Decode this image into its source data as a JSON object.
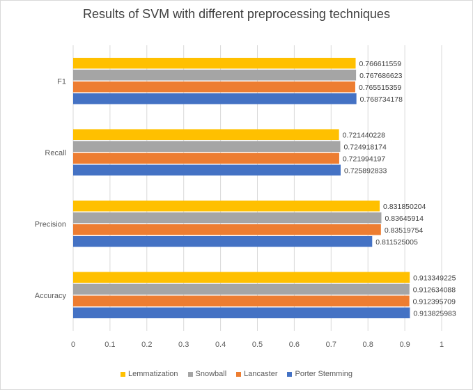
{
  "chart_data": {
    "type": "bar",
    "orientation": "horizontal",
    "title": "Results of SVM with different preprocessing techniques",
    "categories": [
      "Accuracy",
      "Precision",
      "Recall",
      "F1"
    ],
    "series": [
      {
        "name": "Porter Stemming",
        "color": "#4472C4",
        "values": [
          0.913825983,
          0.811525005,
          0.725892833,
          0.768734178
        ],
        "labels": [
          "0.913825983",
          "0.811525005",
          "0.725892833",
          "0.768734178"
        ]
      },
      {
        "name": "Lancaster",
        "color": "#ED7D31",
        "values": [
          0.912395709,
          0.83519754,
          0.721994197,
          0.765515359
        ],
        "labels": [
          "0.912395709",
          "0.83519754",
          "0.721994197",
          "0.765515359"
        ]
      },
      {
        "name": "Snowball",
        "color": "#A5A5A5",
        "values": [
          0.912634088,
          0.83645914,
          0.724918174,
          0.767686623
        ],
        "labels": [
          "0.912634088",
          "0.83645914",
          "0.724918174",
          "0.767686623"
        ]
      },
      {
        "name": "Lemmatization",
        "color": "#FFC000",
        "values": [
          0.913349225,
          0.831850204,
          0.721440228,
          0.766611559
        ],
        "labels": [
          "0.913349225",
          "0.831850204",
          "0.721440228",
          "0.766611559"
        ]
      }
    ],
    "xlim": [
      0,
      1
    ],
    "xticks": [
      "0",
      "0.1",
      "0.2",
      "0.3",
      "0.4",
      "0.5",
      "0.6",
      "0.7",
      "0.8",
      "0.9",
      "1"
    ],
    "grid": true,
    "legend_position": "bottom"
  }
}
